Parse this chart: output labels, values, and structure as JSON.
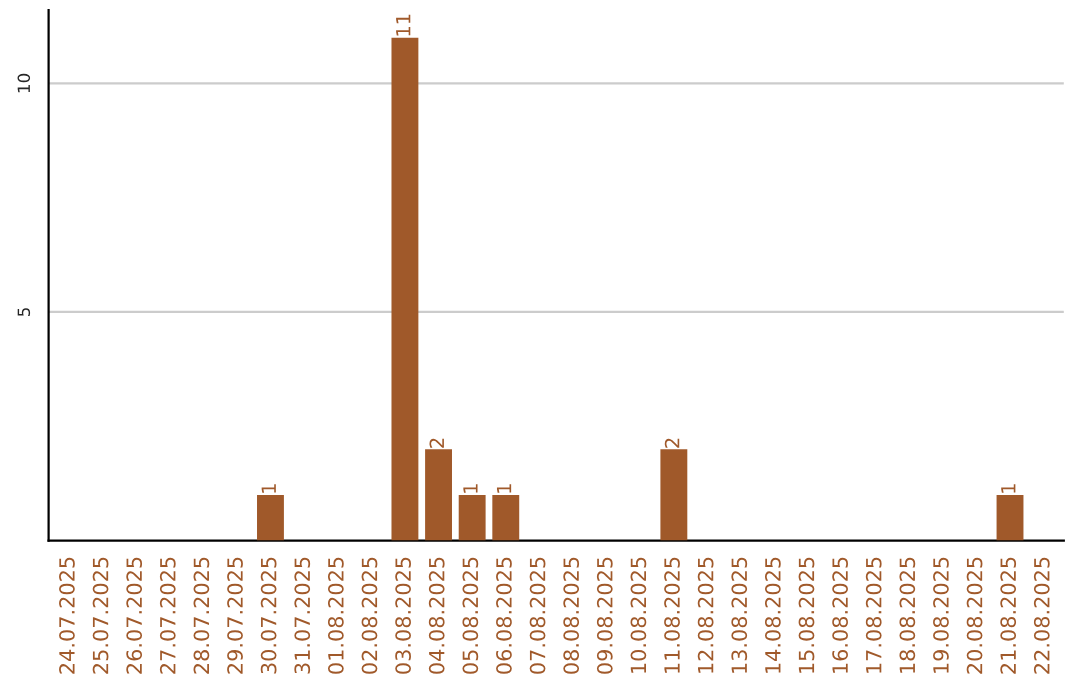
{
  "chart_data": {
    "type": "bar",
    "categories": [
      "24.07.2025",
      "25.07.2025",
      "26.07.2025",
      "27.07.2025",
      "28.07.2025",
      "29.07.2025",
      "30.07.2025",
      "31.07.2025",
      "01.08.2025",
      "02.08.2025",
      "03.08.2025",
      "04.08.2025",
      "05.08.2025",
      "06.08.2025",
      "07.08.2025",
      "08.08.2025",
      "09.08.2025",
      "10.08.2025",
      "11.08.2025",
      "12.08.2025",
      "13.08.2025",
      "14.08.2025",
      "15.08.2025",
      "16.08.2025",
      "17.08.2025",
      "18.08.2025",
      "19.08.2025",
      "20.08.2025",
      "21.08.2025",
      "22.08.2025"
    ],
    "values": [
      0,
      0,
      0,
      0,
      0,
      0,
      1,
      0,
      0,
      0,
      11,
      2,
      1,
      1,
      0,
      0,
      0,
      0,
      2,
      0,
      0,
      0,
      0,
      0,
      0,
      0,
      0,
      0,
      1,
      0
    ],
    "value_labels": [
      null,
      null,
      null,
      null,
      null,
      null,
      "1",
      null,
      null,
      null,
      "11",
      "2",
      "1",
      "1",
      null,
      null,
      null,
      null,
      "2",
      null,
      null,
      null,
      null,
      null,
      null,
      null,
      null,
      null,
      "1",
      null
    ],
    "color": "#a0592a",
    "ylim": [
      0,
      11.6
    ],
    "yticks": [
      5,
      10
    ],
    "grid": "y"
  }
}
